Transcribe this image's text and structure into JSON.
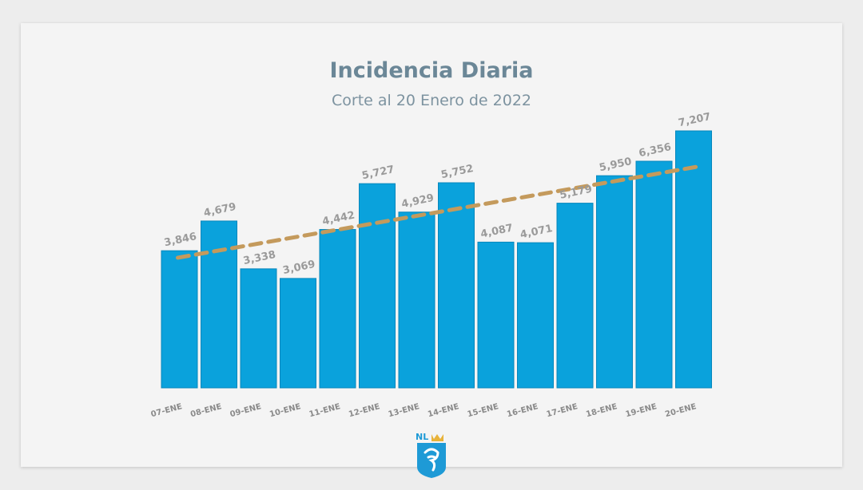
{
  "chart_data": {
    "type": "bar",
    "title": "Incidencia Diaria",
    "subtitle": "Corte al 20 Enero de 2022",
    "categories": [
      "07-ENE",
      "08-ENE",
      "09-ENE",
      "10-ENE",
      "11-ENE",
      "12-ENE",
      "13-ENE",
      "14-ENE",
      "15-ENE",
      "16-ENE",
      "17-ENE",
      "18-ENE",
      "19-ENE",
      "20-ENE"
    ],
    "values": [
      3846,
      4679,
      3338,
      3069,
      4442,
      5727,
      4929,
      5752,
      4087,
      4071,
      5179,
      5950,
      6356,
      7207
    ],
    "data_labels": [
      "3,846",
      "4,679",
      "3,338",
      "3,069",
      "4,442",
      "5,727",
      "4,929",
      "5,752",
      "4,087",
      "4,071",
      "5,179",
      "5,950",
      "6,356",
      "7,207"
    ],
    "ylim": [
      0,
      7500
    ],
    "trendline": {
      "type": "linear",
      "start_value": 3650,
      "end_value": 6200,
      "style": "dashed",
      "color": "#c49a5c"
    },
    "bar_color": "#0aa2dc",
    "grid": false,
    "legend": "none"
  },
  "logo": {
    "text": "NL"
  }
}
